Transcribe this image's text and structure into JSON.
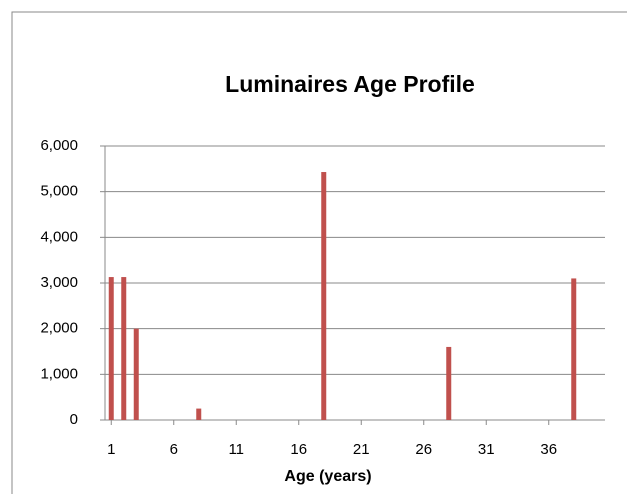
{
  "chart_data": {
    "type": "bar",
    "title": "Luminaires Age Profile",
    "x_label": "Age (years)",
    "x": [
      1,
      2,
      3,
      8,
      18,
      28,
      38
    ],
    "values": [
      3130,
      3130,
      2000,
      250,
      5430,
      1600,
      3100
    ],
    "color": "#c0504d",
    "xlim": [
      0.5,
      40.5
    ],
    "xticks": [
      1,
      6,
      11,
      16,
      21,
      26,
      31,
      36
    ],
    "ylim": [
      0,
      6000
    ],
    "yticks": [
      0,
      {
        "value": 1000,
        "label": "1,000"
      },
      {
        "value": 2000,
        "label": "2,000"
      },
      {
        "value": 3000,
        "label": "3,000"
      },
      {
        "value": 4000,
        "label": "4,000"
      },
      {
        "value": 5000,
        "label": "5,000"
      },
      {
        "value": 6000,
        "label": "6,000"
      }
    ],
    "grid": true
  }
}
